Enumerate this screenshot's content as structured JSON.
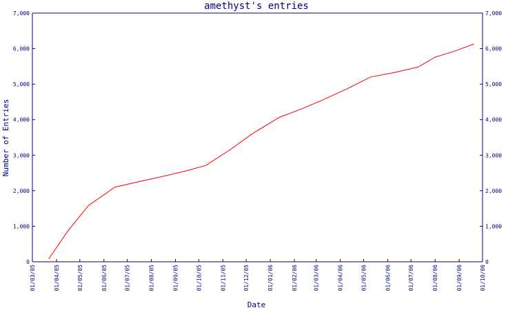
{
  "chart_data": {
    "type": "line",
    "title": "amethyst's entries",
    "xlabel": "Date",
    "ylabel": "Number of Entries",
    "ylim": [
      0,
      7000
    ],
    "y_ticks": [
      0,
      1000,
      2000,
      3000,
      4000,
      5000,
      6000,
      7000
    ],
    "y_tick_labels": [
      "0",
      "1,000",
      "2,000",
      "3,000",
      "4,000",
      "5,000",
      "6,000",
      "7,000"
    ],
    "x_tick_labels": [
      "01/03/05",
      "01/04/05",
      "01/05/05",
      "01/06/05",
      "01/07/05",
      "01/08/05",
      "01/09/05",
      "01/10/05",
      "01/11/05",
      "01/12/05",
      "01/01/06",
      "01/02/06",
      "01/03/06",
      "01/04/06",
      "01/05/06",
      "01/06/06",
      "01/07/06",
      "01/08/06",
      "01/09/06",
      "01/10/06"
    ],
    "grid": false,
    "line_color": "#ff0000",
    "axis_color": "#000080",
    "series": [
      {
        "x": [
          "2005-03-22",
          "2005-04-15",
          "2005-05-12",
          "2005-06-15",
          "2005-07-15",
          "2005-08-15",
          "2005-09-15",
          "2005-10-10",
          "2005-11-10",
          "2005-12-10",
          "2006-01-13",
          "2006-02-10",
          "2006-03-10",
          "2006-04-10",
          "2006-05-10",
          "2006-06-10",
          "2006-07-10",
          "2006-08-01",
          "2006-08-25",
          "2006-09-20"
        ],
        "values": [
          80,
          850,
          1580,
          2100,
          2250,
          2400,
          2560,
          2710,
          3150,
          3620,
          4070,
          4300,
          4560,
          4870,
          5200,
          5330,
          5480,
          5760,
          5920,
          6130
        ]
      }
    ]
  }
}
